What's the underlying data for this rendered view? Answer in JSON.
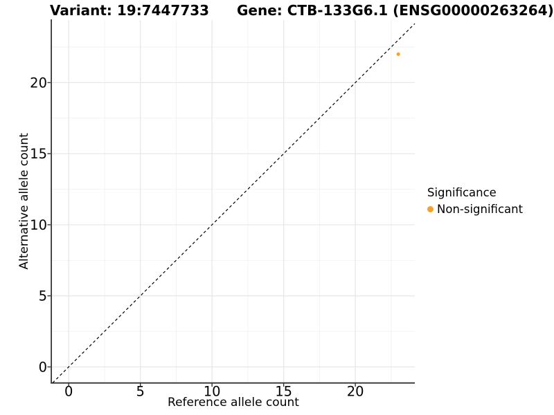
{
  "chart_data": {
    "type": "scatter",
    "title_left": "Variant: 19:7447733",
    "title_right": "Gene: CTB-133G6.1 (ENSG00000263264)",
    "xlabel": "Reference allele count",
    "ylabel": "Alternative allele count",
    "xlim": [
      -1.17,
      24.15
    ],
    "ylim": [
      -1.12,
      24.4
    ],
    "xticks": [
      0,
      5,
      10,
      15,
      20
    ],
    "yticks": [
      0,
      5,
      10,
      15,
      20
    ],
    "minor_ticks_x": [
      2.5,
      7.5,
      12.5,
      17.5,
      22.5
    ],
    "minor_ticks_y": [
      2.5,
      7.5,
      12.5,
      17.5,
      22.5
    ],
    "grid": true,
    "series": [
      {
        "name": "Non-significant",
        "color": "#F9A028",
        "points": [
          {
            "x": 23,
            "y": 22
          }
        ]
      }
    ],
    "reference_line": {
      "type": "identity",
      "slope": 1,
      "intercept": 0,
      "style": "dashed",
      "color": "#000000"
    },
    "legend": {
      "title": "Significance",
      "position": "right",
      "items": [
        {
          "label": "Non-significant",
          "color": "#F9A028"
        }
      ]
    },
    "colors": {
      "point": "#F9A028",
      "axis": "#333333",
      "tick": "#333333",
      "grid_major": "#E6E6E6",
      "grid_minor": "#F2F2F2",
      "background": "#FFFFFF",
      "text": "#000000"
    }
  }
}
